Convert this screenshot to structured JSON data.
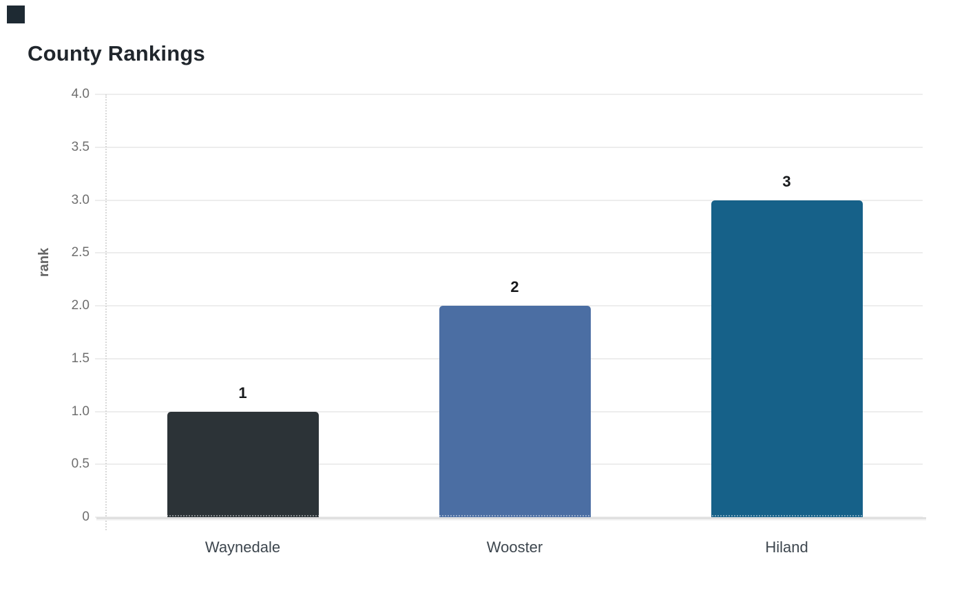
{
  "chart_data": {
    "type": "bar",
    "title": "County Rankings",
    "ylabel": "rank",
    "xlabel": "",
    "categories": [
      "Waynedale",
      "Wooster",
      "Hiland"
    ],
    "values": [
      1,
      2,
      3
    ],
    "value_labels": [
      "1",
      "2",
      "3"
    ],
    "bar_colors": [
      "#2c3337",
      "#4b6ea3",
      "#166189"
    ],
    "ylim": [
      0,
      4
    ],
    "ytick_values": [
      0,
      0.5,
      1,
      1.5,
      2,
      2.5,
      3,
      3.5,
      4
    ],
    "ytick_labels": [
      "0",
      "0.5",
      "1.0",
      "1.5",
      "2.0",
      "2.5",
      "3.0",
      "3.5",
      "4.0"
    ],
    "grid": "horizontal",
    "legend": "none"
  },
  "styles": {
    "background": "#ffffff",
    "title_color": "#20262c",
    "tick_label_color": "#6e6e6e",
    "axis_label_color": "#666666",
    "category_label_color": "#3d464e",
    "value_label_color": "#17191b",
    "grid_color": "#ededed",
    "axis_line_color": "#e0e0e0",
    "dotted_axis_color": "#d8d8d8",
    "corner_mark_color": "#1e2a33"
  }
}
